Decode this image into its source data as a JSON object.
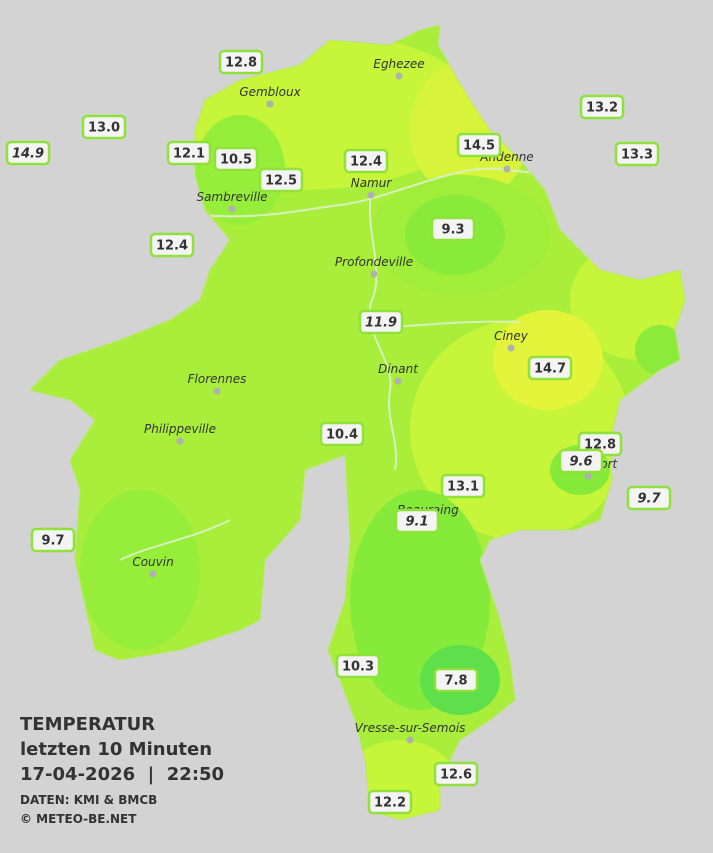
{
  "map": {
    "stations": [
      {
        "label": "12.8"
      },
      {
        "label": "13.0"
      },
      {
        "label": "14.9",
        "italic": true
      },
      {
        "label": "12.1"
      },
      {
        "label": "10.5"
      },
      {
        "label": "12.5"
      },
      {
        "label": "12.4"
      },
      {
        "label": "14.5"
      },
      {
        "label": "13.2"
      },
      {
        "label": "13.3"
      },
      {
        "label": "12.4"
      },
      {
        "label": "9.3"
      },
      {
        "label": "11.9",
        "italic": true
      },
      {
        "label": "14.7"
      },
      {
        "label": "10.4"
      },
      {
        "label": "12.8"
      },
      {
        "label": "9.6",
        "italic": true
      },
      {
        "label": "9.7",
        "italic": true
      },
      {
        "label": "13.1"
      },
      {
        "label": "9.1",
        "italic": true
      },
      {
        "label": "9.7"
      },
      {
        "label": "10.3"
      },
      {
        "label": "7.8"
      },
      {
        "label": "12.6"
      },
      {
        "label": "12.2"
      }
    ],
    "cities": [
      "Eghezee",
      "Gembloux",
      "Andenne",
      "Namur",
      "Sambreville",
      "Profondeville",
      "Ciney",
      "Dinant",
      "Florennes",
      "Philippeville",
      "Rochefort",
      "Beauraing",
      "Couvin",
      "Vresse-sur-Semois"
    ],
    "legend": {
      "title": "TEMPERATUR",
      "period": "letzten 10 Minuten",
      "timestamp": "17-04-2026  |  22:50",
      "source": "DATEN: KMI & BMCB",
      "copyright": "© METEO-BE.NET"
    }
  }
}
